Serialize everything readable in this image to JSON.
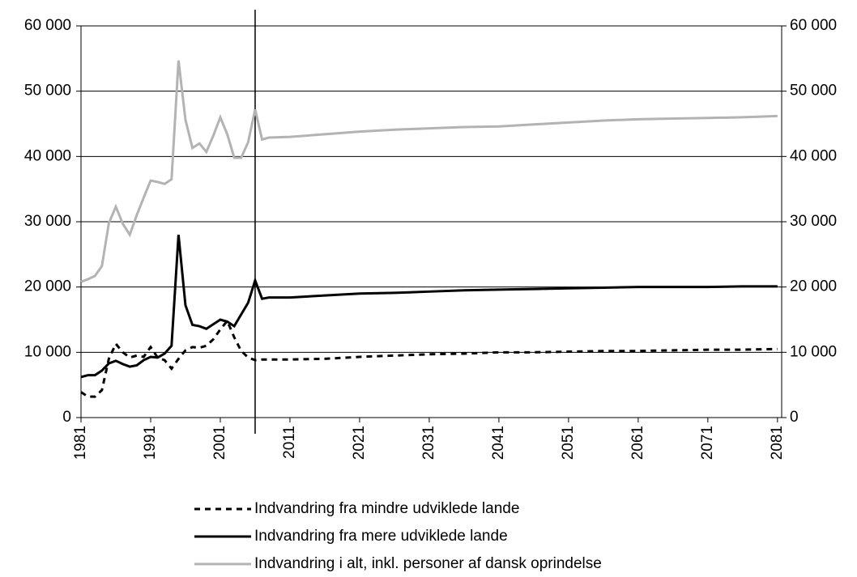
{
  "chart_data": {
    "type": "line",
    "x": [
      1981,
      1982,
      1983,
      1984,
      1985,
      1986,
      1987,
      1988,
      1989,
      1990,
      1991,
      1992,
      1993,
      1994,
      1995,
      1996,
      1997,
      1998,
      1999,
      2000,
      2001,
      2002,
      2003,
      2004,
      2005,
      2006,
      2007,
      2008,
      2011,
      2016,
      2021,
      2026,
      2031,
      2036,
      2041,
      2046,
      2051,
      2056,
      2061,
      2066,
      2071,
      2076,
      2081
    ],
    "series": [
      {
        "name": "Indvandring fra mindre udviklede lande",
        "color": "#000000",
        "line_style": "dashed",
        "values": [
          3900,
          3200,
          3200,
          4200,
          9000,
          11300,
          10000,
          9200,
          9500,
          9300,
          10800,
          9200,
          8800,
          7500,
          9000,
          10300,
          10800,
          10700,
          11000,
          12000,
          13500,
          14800,
          12300,
          10200,
          9200,
          8800,
          8900,
          8900,
          8900,
          9000,
          9300,
          9500,
          9700,
          9800,
          10000,
          10000,
          10100,
          10200,
          10200,
          10300,
          10400,
          10400,
          10500
        ]
      },
      {
        "name": "Indvandring fra mere udviklede lande",
        "color": "#000000",
        "line_style": "solid",
        "values": [
          6200,
          6500,
          6500,
          7200,
          8300,
          8700,
          8200,
          7800,
          8000,
          8800,
          9300,
          9200,
          9800,
          11000,
          28000,
          17200,
          14200,
          14000,
          13600,
          14300,
          15000,
          14700,
          14000,
          15800,
          17600,
          21000,
          18200,
          18400,
          18400,
          18700,
          19000,
          19100,
          19300,
          19500,
          19600,
          19700,
          19800,
          19900,
          20000,
          20000,
          20000,
          20100,
          20100
        ]
      },
      {
        "name": "Indvandring i alt, inkl. personer af dansk oprindelse",
        "color": "#b3b3b3",
        "line_style": "solid",
        "values": [
          20800,
          21200,
          21700,
          23200,
          29800,
          32300,
          29700,
          28000,
          31000,
          33700,
          36300,
          36100,
          35800,
          36500,
          54700,
          45600,
          41300,
          42000,
          40700,
          43200,
          46000,
          43400,
          39800,
          39800,
          42200,
          47200,
          42600,
          42900,
          43000,
          43400,
          43800,
          44100,
          44300,
          44500,
          44600,
          44900,
          45200,
          45500,
          45700,
          45800,
          45900,
          46000,
          46200
        ]
      }
    ],
    "xlim": [
      1981,
      2081.6
    ],
    "xticks": [
      1981,
      1991,
      2001,
      2011,
      2021,
      2031,
      2041,
      2051,
      2061,
      2071,
      2081
    ],
    "ylim": [
      0,
      60000
    ],
    "yticks": [
      0,
      {
        "value": 10000,
        "label": "10 000"
      },
      {
        "value": 20000,
        "label": "20 000"
      },
      {
        "value": 30000,
        "label": "30 000"
      },
      {
        "value": 40000,
        "label": "40 000"
      },
      {
        "value": 50000,
        "label": "50 000"
      },
      {
        "value": 60000,
        "label": "60 000"
      }
    ],
    "y2lim": [
      0,
      60000
    ],
    "y2ticks": [
      0,
      {
        "value": 10000,
        "label": "10 000"
      },
      {
        "value": 20000,
        "label": "20 000"
      },
      {
        "value": 30000,
        "label": "30 000"
      },
      {
        "value": 40000,
        "label": "40 000"
      },
      {
        "value": 50000,
        "label": "50 000"
      },
      {
        "value": 60000,
        "label": "60 000"
      }
    ],
    "grid": true,
    "divider_x": 2006
  }
}
